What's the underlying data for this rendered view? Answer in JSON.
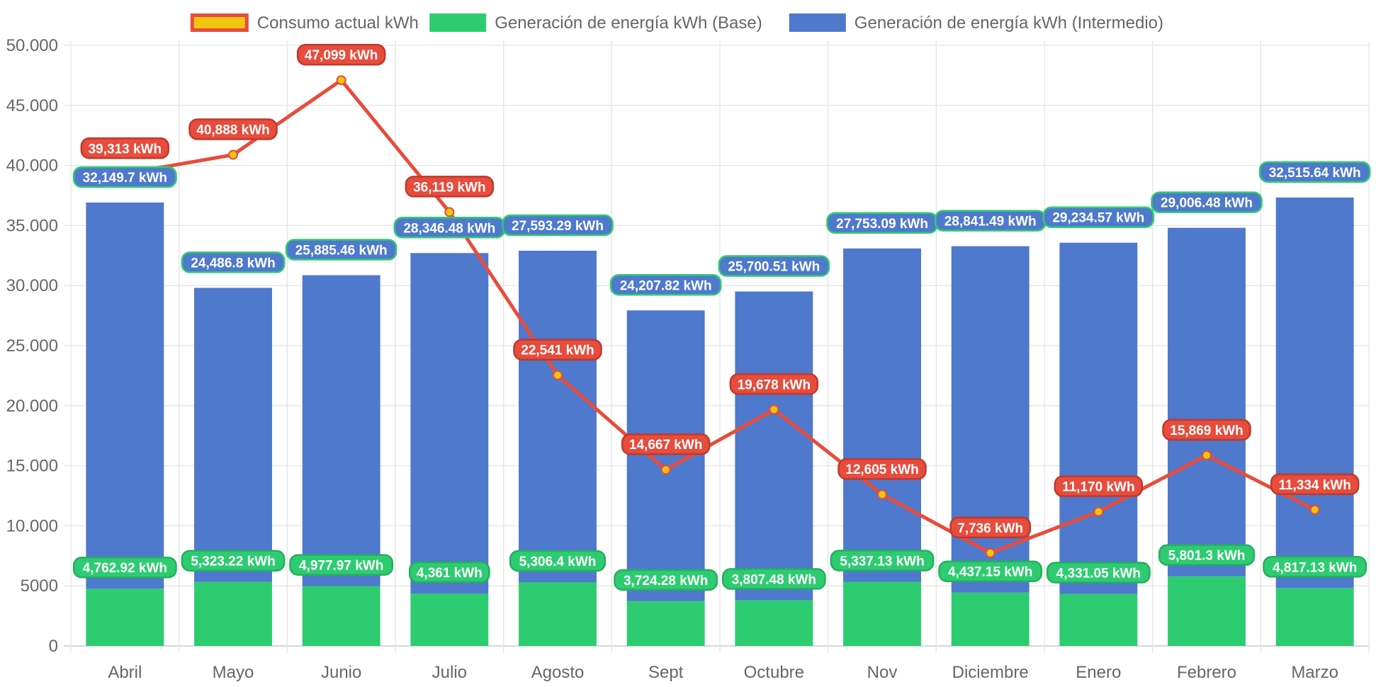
{
  "chart_data": {
    "type": "bar",
    "stacked": true,
    "categories": [
      "Abril",
      "Mayo",
      "Junio",
      "Julio",
      "Agosto",
      "Sept",
      "Octubre",
      "Nov",
      "Diciembre",
      "Enero",
      "Febrero",
      "Marzo"
    ],
    "series": [
      {
        "name": "Consumo actual kWh",
        "kind": "line",
        "color": "#e74c3c",
        "point_color": "#f1c40f",
        "values": [
          39313,
          40888,
          47099,
          36119,
          22541,
          14667,
          19678,
          12605,
          7736,
          11170,
          15869,
          11334
        ],
        "labels": [
          "39,313 kWh",
          "40,888 kWh",
          "47,099 kWh",
          "36,119 kWh",
          "22,541 kWh",
          "14,667 kWh",
          "19,678 kWh",
          "12,605 kWh",
          "7,736 kWh",
          "11,170 kWh",
          "15,869 kWh",
          "11,334 kWh"
        ]
      },
      {
        "name": "Generación de energía kWh (Base)",
        "kind": "bar",
        "color": "#2ecc71",
        "values": [
          4762.92,
          5323.22,
          4977.97,
          4361,
          5306.4,
          3724.28,
          3807.48,
          5337.13,
          4437.15,
          4331.05,
          5801.3,
          4817.13
        ],
        "labels": [
          "4,762.92 kWh",
          "5,323.22 kWh",
          "4,977.97 kWh",
          "4,361 kWh",
          "5,306.4 kWh",
          "3,724.28 kWh",
          "3,807.48 kWh",
          "5,337.13 kWh",
          "4,437.15 kWh",
          "4,331.05 kWh",
          "5,801.3 kWh",
          "4,817.13 kWh"
        ]
      },
      {
        "name": "Generación de energía kWh (Intermedio)",
        "kind": "bar",
        "color": "#4e79cd",
        "values": [
          32149.7,
          24486.8,
          25885.46,
          28346.48,
          27593.29,
          24207.82,
          25700.51,
          27753.09,
          28841.49,
          29234.57,
          29006.48,
          32515.64
        ],
        "labels": [
          "32,149.7 kWh",
          "24,486.8 kWh",
          "25,885.46 kWh",
          "28,346.48 kWh",
          "27,593.29 kWh",
          "24,207.82 kWh",
          "25,700.51 kWh",
          "27,753.09 kWh",
          "28,841.49 kWh",
          "29,234.57 kWh",
          "29,006.48 kWh",
          "32,515.64 kWh"
        ]
      }
    ],
    "y_ticks": [
      {
        "value": 0,
        "label": "0"
      },
      {
        "value": 5000,
        "label": "5000"
      },
      {
        "value": 10000,
        "label": "10.000"
      },
      {
        "value": 15000,
        "label": "15.000"
      },
      {
        "value": 20000,
        "label": "20.000"
      },
      {
        "value": 25000,
        "label": "25.000"
      },
      {
        "value": 30000,
        "label": "30.000"
      },
      {
        "value": 35000,
        "label": "35.000"
      },
      {
        "value": 40000,
        "label": "40.000"
      },
      {
        "value": 45000,
        "label": "45.000"
      },
      {
        "value": 50000,
        "label": "50.000"
      }
    ],
    "ylim": [
      0,
      50000
    ],
    "grid": true,
    "legend_position": "top-center",
    "title": "",
    "xlabel": "",
    "ylabel": ""
  }
}
